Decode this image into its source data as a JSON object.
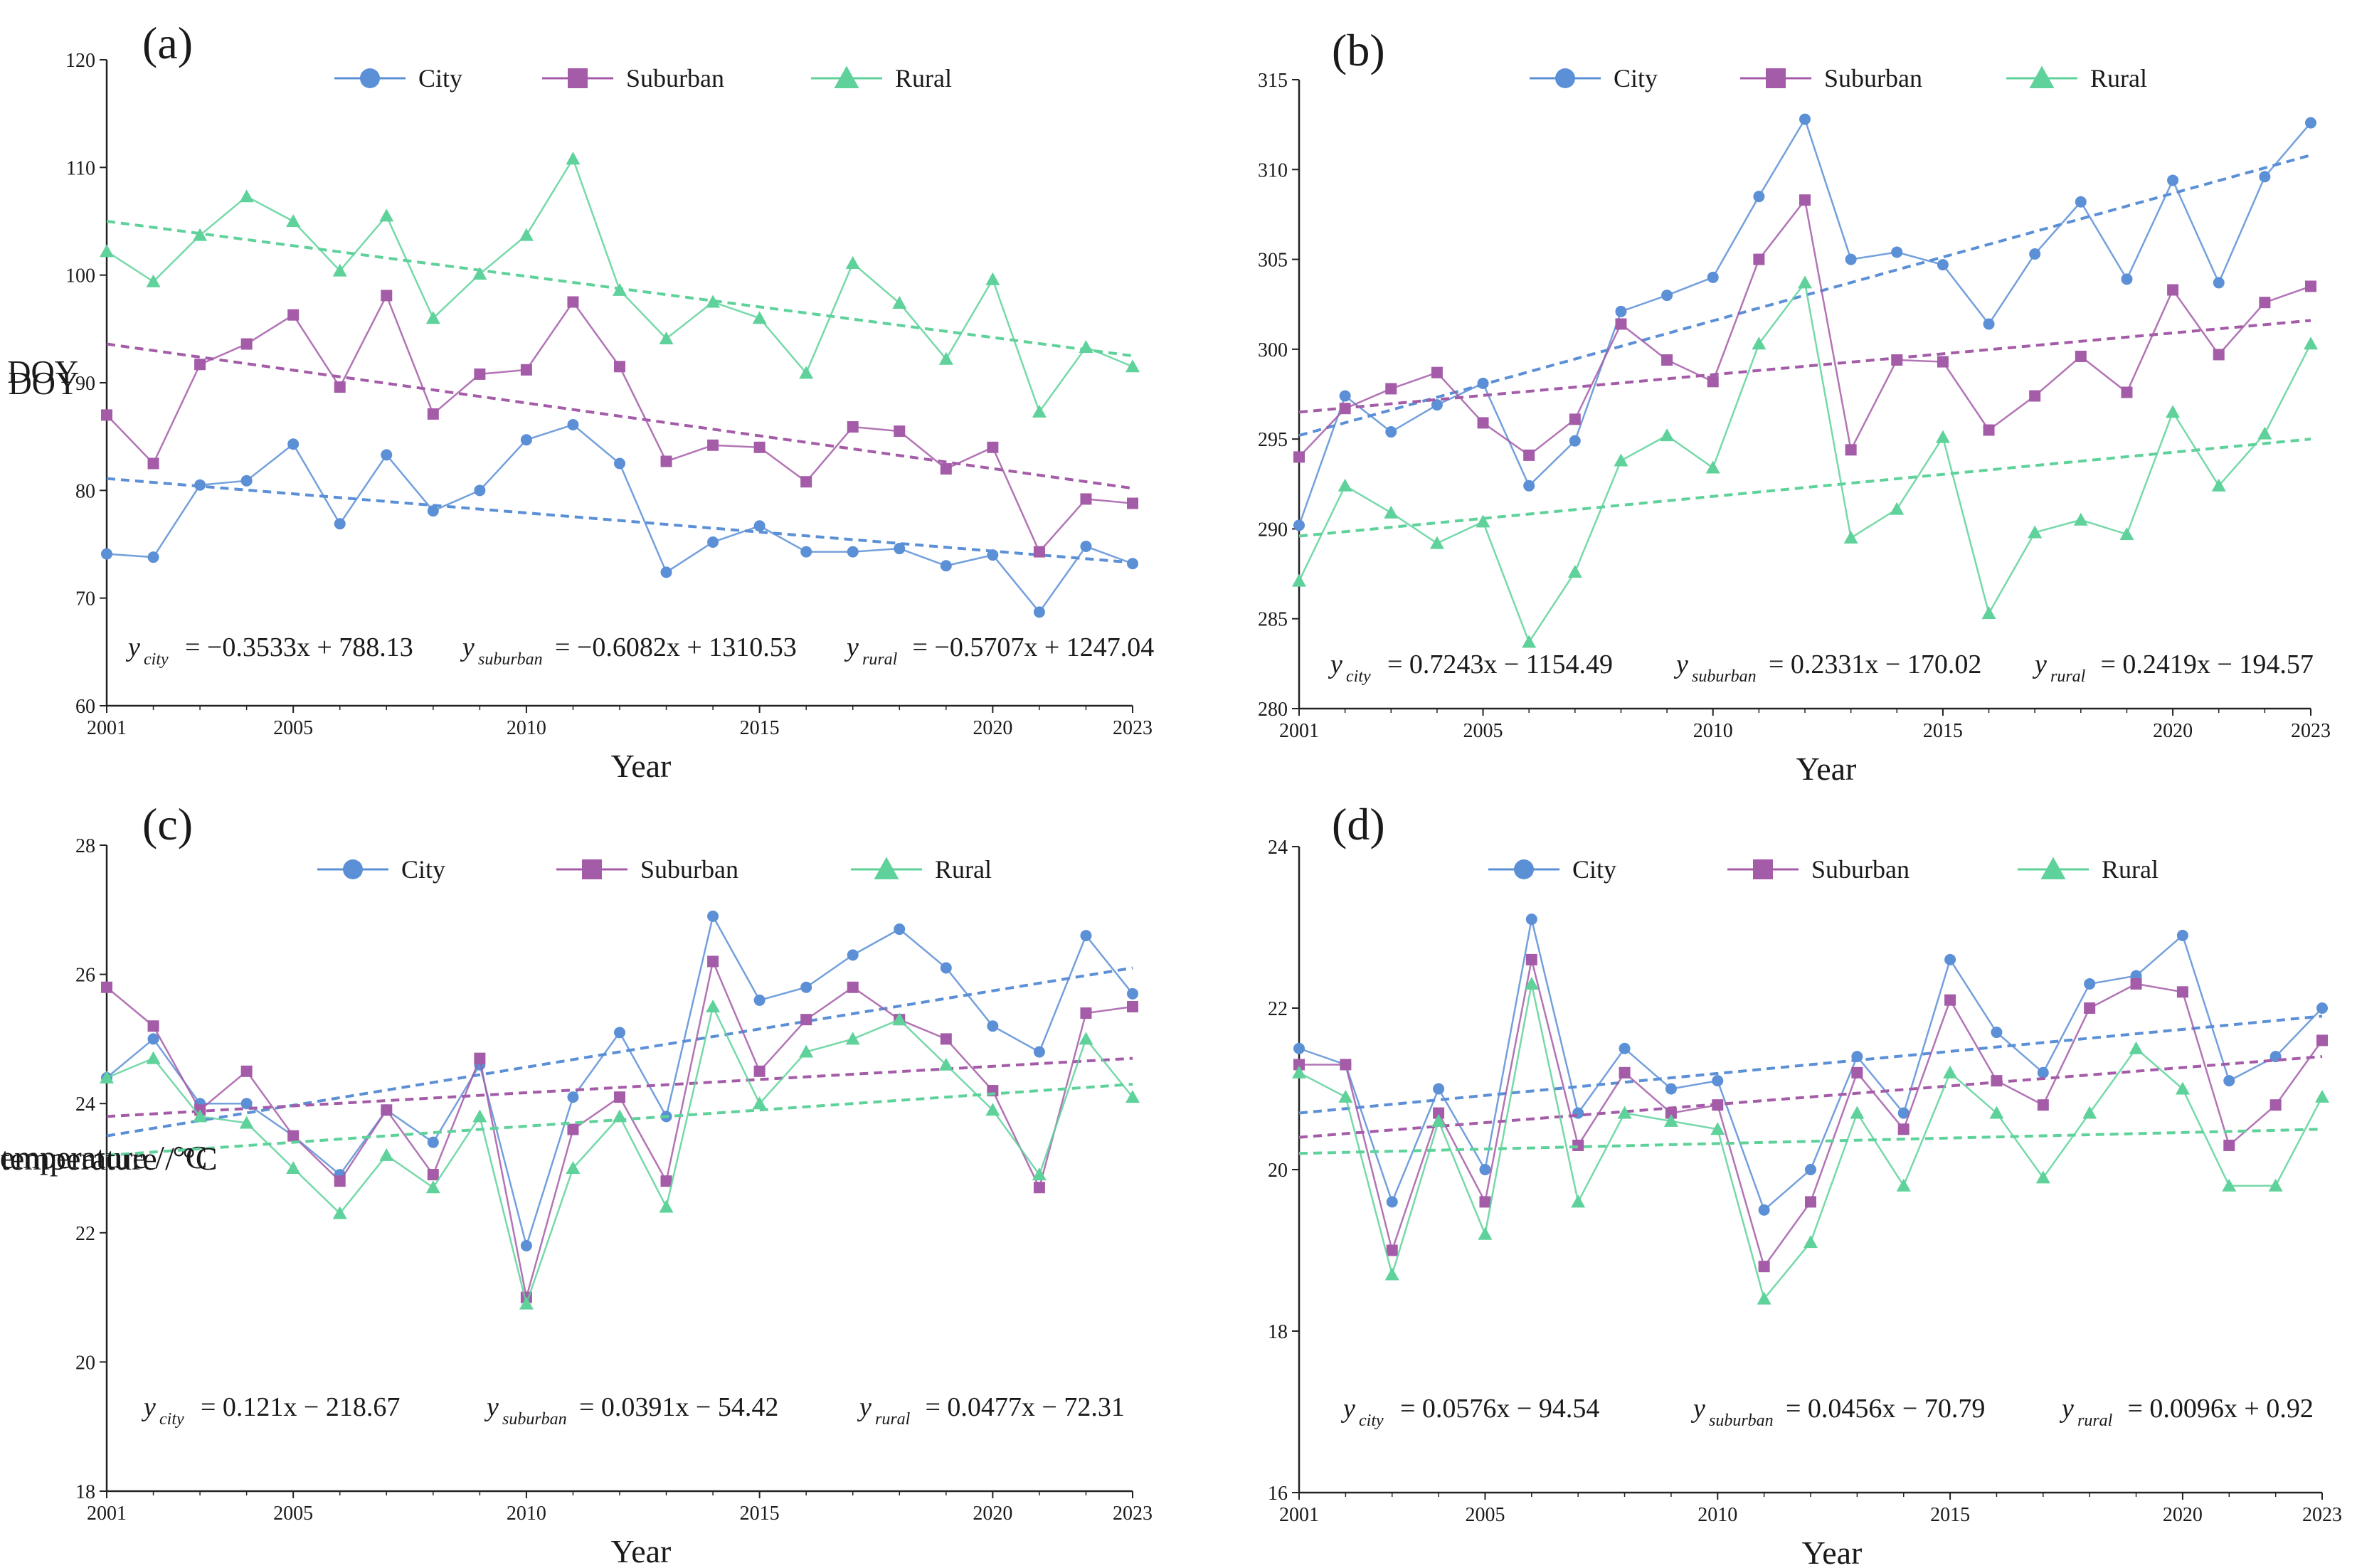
{
  "chart_data": [
    {
      "panel": "(a)",
      "type": "line",
      "xlabel": "Year",
      "ylabel": "SOS / DOY",
      "xlim": [
        2001,
        2023
      ],
      "ylim": [
        60,
        120
      ],
      "xticks": [
        2001,
        2005,
        2010,
        2015,
        2020,
        2023
      ],
      "yticks": [
        60,
        70,
        80,
        90,
        100,
        110,
        120
      ],
      "x": [
        2001,
        2002,
        2003,
        2004,
        2005,
        2006,
        2007,
        2008,
        2009,
        2010,
        2011,
        2012,
        2013,
        2014,
        2015,
        2016,
        2017,
        2018,
        2019,
        2020,
        2021,
        2022,
        2023
      ],
      "series": [
        {
          "name": "City",
          "marker": "circle",
          "color": "#5b8fd6",
          "values": [
            74.1,
            73.8,
            80.5,
            80.9,
            84.3,
            76.9,
            83.3,
            78.1,
            80.0,
            84.7,
            86.1,
            82.5,
            72.4,
            75.2,
            76.7,
            74.3,
            74.3,
            74.6,
            73.0,
            74.0,
            68.7,
            74.8,
            73.2
          ],
          "trend": [
            81.1,
            73.3
          ]
        },
        {
          "name": "Suburban",
          "marker": "square",
          "color": "#a45ca8",
          "values": [
            87.0,
            82.5,
            91.7,
            93.6,
            96.3,
            89.6,
            98.1,
            87.1,
            90.8,
            91.2,
            97.5,
            91.5,
            82.7,
            84.2,
            84.0,
            80.8,
            85.9,
            85.5,
            82.0,
            84.0,
            74.3,
            79.2,
            78.8
          ],
          "trend": [
            93.6,
            80.2
          ]
        },
        {
          "name": "Rural",
          "marker": "triangle",
          "color": "#5ed29a",
          "values": [
            102.2,
            99.4,
            103.7,
            107.3,
            105.0,
            100.4,
            105.5,
            96.0,
            100.1,
            103.7,
            110.8,
            98.6,
            94.1,
            97.5,
            96.0,
            90.9,
            101.1,
            97.4,
            92.2,
            99.6,
            87.3,
            93.3,
            91.5
          ],
          "trend": [
            105.0,
            92.5
          ]
        }
      ],
      "equations": [
        {
          "y": "y",
          "sub": "city",
          "rhs": "= −0.3533x + 788.13"
        },
        {
          "y": "y",
          "sub": "suburban",
          "rhs": "= −0.6082x + 1310.53"
        },
        {
          "y": "y",
          "sub": "rural",
          "rhs": "= −0.5707x + 1247.04"
        }
      ]
    },
    {
      "panel": "(b)",
      "type": "line",
      "xlabel": "Year",
      "ylabel": "EOS / DOY",
      "xlim": [
        2001,
        2023
      ],
      "ylim": [
        280,
        315
      ],
      "xticks": [
        2001,
        2005,
        2010,
        2015,
        2020,
        2023
      ],
      "yticks": [
        280,
        285,
        290,
        295,
        300,
        305,
        310,
        315
      ],
      "x": [
        2001,
        2002,
        2003,
        2004,
        2005,
        2006,
        2007,
        2008,
        2009,
        2010,
        2011,
        2012,
        2013,
        2014,
        2015,
        2016,
        2017,
        2018,
        2019,
        2020,
        2021,
        2022,
        2023
      ],
      "series": [
        {
          "name": "City",
          "marker": "circle",
          "color": "#5b8fd6",
          "values": [
            290.2,
            297.4,
            295.4,
            296.9,
            298.1,
            292.4,
            294.9,
            302.1,
            303.0,
            304.0,
            308.5,
            312.8,
            305.0,
            305.4,
            304.7,
            301.4,
            305.3,
            308.2,
            303.9,
            309.4,
            303.7,
            309.6,
            312.6
          ],
          "trend": [
            295.2,
            310.8
          ]
        },
        {
          "name": "Suburban",
          "marker": "square",
          "color": "#a45ca8",
          "values": [
            294.0,
            296.7,
            297.8,
            298.7,
            295.9,
            294.1,
            296.1,
            301.4,
            299.4,
            298.2,
            305.0,
            308.3,
            294.4,
            299.4,
            299.3,
            295.5,
            297.4,
            299.6,
            297.6,
            303.3,
            299.7,
            302.6,
            303.5
          ],
          "trend": [
            296.5,
            301.6
          ]
        },
        {
          "name": "Rural",
          "marker": "triangle",
          "color": "#5ed29a",
          "values": [
            287.1,
            292.4,
            290.9,
            289.2,
            290.4,
            283.7,
            287.6,
            293.8,
            295.2,
            293.4,
            300.3,
            303.7,
            289.5,
            291.1,
            295.1,
            285.3,
            289.8,
            290.5,
            289.7,
            296.5,
            292.4,
            295.3,
            300.3
          ],
          "trend": [
            289.6,
            295.0
          ]
        }
      ],
      "equations": [
        {
          "y": "y",
          "sub": "city",
          "rhs": "= 0.7243x − 1154.49"
        },
        {
          "y": "y",
          "sub": "suburban",
          "rhs": "= 0.2331x − 170.02"
        },
        {
          "y": "y",
          "sub": "rural",
          "rhs": "= 0.2419x − 194.57"
        }
      ]
    },
    {
      "panel": "(c)",
      "type": "line",
      "xlabel": "Year",
      "ylabel": "Spring surface temperature / °C",
      "xlim": [
        2001,
        2023
      ],
      "ylim": [
        18,
        28
      ],
      "xticks": [
        2001,
        2005,
        2010,
        2015,
        2020,
        2023
      ],
      "yticks": [
        18,
        20,
        22,
        24,
        26,
        28
      ],
      "x": [
        2001,
        2002,
        2003,
        2004,
        2005,
        2006,
        2007,
        2008,
        2009,
        2010,
        2011,
        2012,
        2013,
        2014,
        2015,
        2016,
        2017,
        2018,
        2019,
        2020,
        2021,
        2022,
        2023
      ],
      "series": [
        {
          "name": "City",
          "marker": "circle",
          "color": "#5b8fd6",
          "values": [
            24.4,
            25.0,
            24.0,
            24.0,
            23.5,
            22.9,
            23.9,
            23.4,
            24.6,
            21.8,
            24.1,
            25.1,
            23.8,
            26.9,
            25.6,
            25.8,
            26.3,
            26.7,
            26.1,
            25.2,
            24.8,
            26.6,
            25.7
          ],
          "trend": [
            23.5,
            26.1
          ]
        },
        {
          "name": "Suburban",
          "marker": "square",
          "color": "#a45ca8",
          "values": [
            25.8,
            25.2,
            23.9,
            24.5,
            23.5,
            22.8,
            23.9,
            22.9,
            24.7,
            21.0,
            23.6,
            24.1,
            22.8,
            26.2,
            24.5,
            25.3,
            25.8,
            25.3,
            25.0,
            24.2,
            22.7,
            25.4,
            25.5
          ],
          "trend": [
            23.8,
            24.7
          ]
        },
        {
          "name": "Rural",
          "marker": "triangle",
          "color": "#5ed29a",
          "values": [
            24.4,
            24.7,
            23.8,
            23.7,
            23.0,
            22.3,
            23.2,
            22.7,
            23.8,
            20.9,
            23.0,
            23.8,
            22.4,
            25.5,
            24.0,
            24.8,
            25.0,
            25.3,
            24.6,
            23.9,
            22.9,
            25.0,
            24.1
          ],
          "trend": [
            23.2,
            24.3
          ]
        }
      ],
      "equations": [
        {
          "y": "y",
          "sub": "city",
          "rhs": "= 0.121x − 218.67"
        },
        {
          "y": "y",
          "sub": "suburban",
          "rhs": "= 0.0391x − 54.42"
        },
        {
          "y": "y",
          "sub": "rural",
          "rhs": "= 0.0477x − 72.31"
        }
      ]
    },
    {
      "panel": "(d)",
      "type": "line",
      "xlabel": "Year",
      "ylabel": "Autumn surface temperature / °C",
      "xlim": [
        2001,
        2023
      ],
      "ylim": [
        16,
        24
      ],
      "xticks": [
        2001,
        2005,
        2010,
        2015,
        2020,
        2023
      ],
      "yticks": [
        16,
        18,
        20,
        22,
        24
      ],
      "x": [
        2001,
        2002,
        2003,
        2004,
        2005,
        2006,
        2007,
        2008,
        2009,
        2010,
        2011,
        2012,
        2013,
        2014,
        2015,
        2016,
        2017,
        2018,
        2019,
        2020,
        2021,
        2022,
        2023
      ],
      "series": [
        {
          "name": "City",
          "marker": "circle",
          "color": "#5b8fd6",
          "values": [
            21.5,
            21.3,
            19.6,
            21.0,
            20.0,
            23.1,
            20.7,
            21.5,
            21.0,
            21.1,
            19.5,
            20.0,
            21.4,
            20.7,
            22.6,
            21.7,
            21.2,
            22.3,
            22.4,
            22.9,
            21.1,
            21.4,
            22.0
          ],
          "trend": [
            20.7,
            21.9
          ]
        },
        {
          "name": "Suburban",
          "marker": "square",
          "color": "#a45ca8",
          "values": [
            21.3,
            21.3,
            19.0,
            20.7,
            19.6,
            22.6,
            20.3,
            21.2,
            20.7,
            20.8,
            18.8,
            19.6,
            21.2,
            20.5,
            22.1,
            21.1,
            20.8,
            22.0,
            22.3,
            22.2,
            20.3,
            20.8,
            21.6
          ],
          "trend": [
            20.4,
            21.4
          ]
        },
        {
          "name": "Rural",
          "marker": "triangle",
          "color": "#5ed29a",
          "values": [
            21.2,
            20.9,
            18.7,
            20.6,
            19.2,
            22.3,
            19.6,
            20.7,
            20.6,
            20.5,
            18.4,
            19.1,
            20.7,
            19.8,
            21.2,
            20.7,
            19.9,
            20.7,
            21.5,
            21.0,
            19.8,
            19.8,
            20.9
          ],
          "trend": [
            20.2,
            20.5
          ]
        }
      ],
      "equations": [
        {
          "y": "y",
          "sub": "city",
          "rhs": "= 0.0576x − 94.54"
        },
        {
          "y": "y",
          "sub": "suburban",
          "rhs": "= 0.0456x − 70.79"
        },
        {
          "y": "y",
          "sub": "rural",
          "rhs": "= 0.0096x + 0.92"
        }
      ]
    }
  ]
}
